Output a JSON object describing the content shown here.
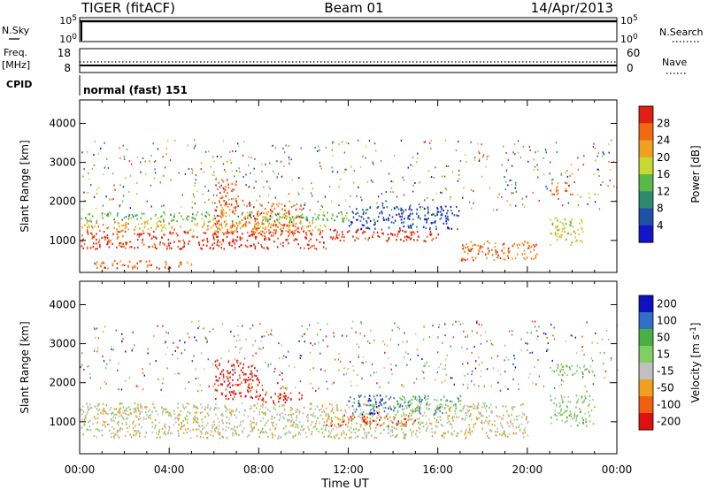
{
  "header": {
    "radar": "TIGER (fitACF)",
    "beam": "Beam 01",
    "date": "14/Apr/2013"
  },
  "strip_sky": {
    "left_label": "N.Sky",
    "right_label": "N.Search",
    "ticks_left": [
      "10^5",
      "10^0"
    ],
    "ticks_right": [
      "10^5",
      "10^0"
    ]
  },
  "strip_freq": {
    "left_label_1": "Freq.",
    "left_label_2": "[MHz]",
    "right_label": "Nave",
    "ticks_left": [
      "18",
      "8"
    ],
    "ticks_right": [
      "60",
      "0"
    ]
  },
  "strip_cpid": {
    "label": "CPID",
    "text": "normal (fast) 151"
  },
  "chart_data": [
    {
      "type": "heatmap",
      "panel": "power",
      "xlabel": "Time UT",
      "ylabel": "Slant Range [km]",
      "xlim": [
        0,
        24
      ],
      "ylim": [
        180,
        4600
      ],
      "x_ticks": [
        "00:00",
        "04:00",
        "08:00",
        "12:00",
        "16:00",
        "20:00",
        "00:00"
      ],
      "y_ticks": [
        "1000",
        "2000",
        "3000",
        "4000"
      ],
      "y_tick_values": [
        1000,
        2000,
        3000,
        4000
      ],
      "colorbar_label": "Power [dB]",
      "colorbar_ticks": [
        "4",
        "8",
        "12",
        "16",
        "20",
        "24",
        "28"
      ],
      "colorbar_range": [
        0,
        32
      ],
      "colors": [
        "#1414c8",
        "#1e50a8",
        "#2e8a6e",
        "#58b848",
        "#c8d830",
        "#f0a020",
        "#f06a10",
        "#e02010"
      ],
      "echo_regions": [
        {
          "t_start": 0.0,
          "t_end": 11.0,
          "range_lo": 800,
          "range_hi": 1250,
          "level": 7
        },
        {
          "t_start": 0.0,
          "t_end": 11.0,
          "range_lo": 1250,
          "range_hi": 1500,
          "level": 5
        },
        {
          "t_start": 0.0,
          "t_end": 12.0,
          "range_lo": 1500,
          "range_hi": 1750,
          "level": 3
        },
        {
          "t_start": 6.0,
          "t_end": 10.0,
          "range_lo": 1200,
          "range_hi": 2000,
          "level": 6
        },
        {
          "t_start": 6.0,
          "t_end": 7.0,
          "range_lo": 2000,
          "range_hi": 2600,
          "level": 6
        },
        {
          "t_start": 11.0,
          "t_end": 16.0,
          "range_lo": 1000,
          "range_hi": 1300,
          "level": 7
        },
        {
          "t_start": 12.0,
          "t_end": 17.0,
          "range_lo": 1300,
          "range_hi": 1900,
          "level": 1
        },
        {
          "t_start": 17.0,
          "t_end": 20.5,
          "range_lo": 500,
          "range_hi": 1000,
          "level": 6
        },
        {
          "t_start": 21.0,
          "t_end": 22.5,
          "range_lo": 900,
          "range_hi": 1600,
          "level": 4
        },
        {
          "t_start": 21.0,
          "t_end": 22.0,
          "range_lo": 2200,
          "range_hi": 2500,
          "level": 6
        },
        {
          "t_start": 0.5,
          "t_end": 5.0,
          "range_lo": 300,
          "range_hi": 500,
          "level": 6
        }
      ]
    },
    {
      "type": "heatmap",
      "panel": "velocity",
      "xlabel": "Time UT",
      "ylabel": "Slant Range [km]",
      "xlim": [
        0,
        24
      ],
      "ylim": [
        180,
        4600
      ],
      "x_ticks": [
        "00:00",
        "04:00",
        "08:00",
        "12:00",
        "16:00",
        "20:00",
        "00:00"
      ],
      "y_ticks": [
        "1000",
        "2000",
        "3000",
        "4000"
      ],
      "y_tick_values": [
        1000,
        2000,
        3000,
        4000
      ],
      "colorbar_label": "Velocity [m s^-1]",
      "colorbar_ticks": [
        "200",
        "100",
        "50",
        "15",
        "-15",
        "-50",
        "-100",
        "-200"
      ],
      "colors": [
        "#1010c0",
        "#3070c8",
        "#48b040",
        "#80d060",
        "#c0c0c0",
        "#f0a020",
        "#f06010",
        "#e01010"
      ],
      "echo_regions": [
        {
          "t_start": 0.0,
          "t_end": 20.0,
          "range_lo": 600,
          "range_hi": 1500,
          "level": 4
        },
        {
          "t_start": 6.0,
          "t_end": 8.0,
          "range_lo": 1600,
          "range_hi": 2600,
          "level": 7
        },
        {
          "t_start": 8.0,
          "t_end": 10.0,
          "range_lo": 1500,
          "range_hi": 1800,
          "level": 7
        },
        {
          "t_start": 11.0,
          "t_end": 15.0,
          "range_lo": 900,
          "range_hi": 1200,
          "level": 6
        },
        {
          "t_start": 12.0,
          "t_end": 14.0,
          "range_lo": 1200,
          "range_hi": 1700,
          "level": 1
        },
        {
          "t_start": 14.0,
          "t_end": 17.0,
          "range_lo": 1200,
          "range_hi": 1700,
          "level": 2
        },
        {
          "t_start": 21.0,
          "t_end": 23.0,
          "range_lo": 2200,
          "range_hi": 2500,
          "level": 3
        },
        {
          "t_start": 21.0,
          "t_end": 23.0,
          "range_lo": 900,
          "range_hi": 1700,
          "level": 3
        },
        {
          "t_start": 1.0,
          "t_end": 4.0,
          "range_lo": 1200,
          "range_hi": 1400,
          "level": 4
        }
      ]
    }
  ]
}
